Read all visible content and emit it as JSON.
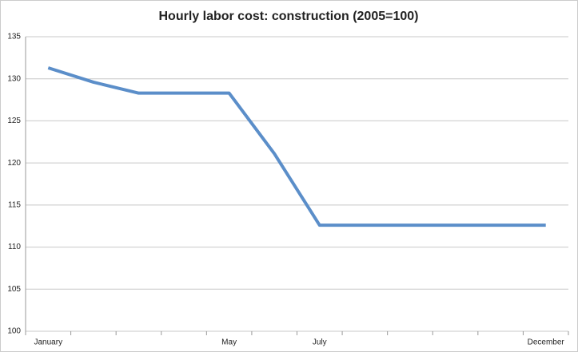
{
  "chart_data": {
    "type": "line",
    "title": "Hourly labor cost: construction (2005=100)",
    "categories": [
      "January",
      null,
      null,
      null,
      "May",
      null,
      "July",
      null,
      null,
      null,
      null,
      "December"
    ],
    "series": [
      {
        "name": "Hourly labor cost",
        "color": "#5b8ec9",
        "values": [
          131.3,
          129.6,
          128.3,
          128.3,
          128.3,
          121.1,
          112.6,
          112.6,
          112.6,
          112.6,
          112.6,
          112.6
        ]
      }
    ],
    "ylim": [
      100,
      135
    ],
    "yticks": [
      100,
      105,
      110,
      115,
      120,
      125,
      130,
      135
    ],
    "grid": true
  }
}
